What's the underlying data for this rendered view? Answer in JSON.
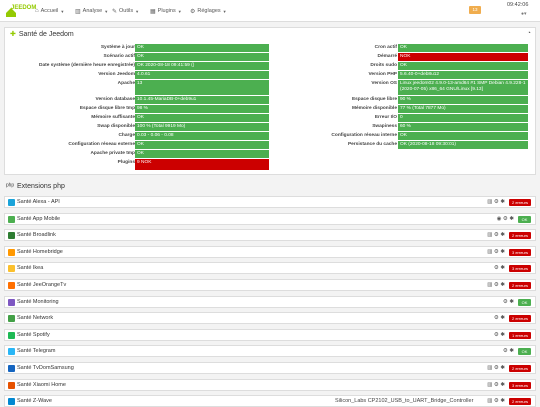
{
  "navbar": {
    "logo_text": "JEEDOM",
    "items": [
      {
        "icon": "home-icon",
        "glyph": "⌂",
        "label": "Accueil"
      },
      {
        "icon": "analysis-icon",
        "glyph": "▥",
        "label": "Analyse"
      },
      {
        "icon": "tools-icon",
        "glyph": "✎",
        "label": "Outils"
      },
      {
        "icon": "plugins-icon",
        "glyph": "▦",
        "label": "Plugins"
      },
      {
        "icon": "settings-icon",
        "glyph": "⚙",
        "label": "Réglages"
      }
    ],
    "badge": "13",
    "clock": "09:42:06"
  },
  "health": {
    "title": "Santé de Jeedom",
    "left": [
      {
        "label": "Système à jour",
        "value": "OK",
        "status": "ok"
      },
      {
        "label": "Scénario actif",
        "value": "OK",
        "status": "ok"
      },
      {
        "label": "Date système (dernière heure enregistrée)",
        "value": "OK 2020-08-18 09:41:59 ()",
        "status": "ok"
      },
      {
        "label": "Version Jeedom",
        "value": "4.0.61",
        "status": "ok"
      },
      {
        "label": "Apache",
        "value": "13",
        "status": "ok"
      },
      {
        "label": "Version database",
        "value": "10.1.45-MariaDB-0+deb9u1",
        "status": "ok"
      },
      {
        "label": "Espace disque libre tmp",
        "value": "98 %",
        "status": "ok"
      },
      {
        "label": "Mémoire suffisante",
        "value": "OK",
        "status": "ok"
      },
      {
        "label": "Swap disponible",
        "value": "100 % (Total 9919 Mo)",
        "status": "ok"
      },
      {
        "label": "Charge",
        "value": "0.03 - 0.06 - 0.08",
        "status": "ok"
      },
      {
        "label": "Configuration réseau externe",
        "value": "OK",
        "status": "ok"
      },
      {
        "label": "Apache private tmp",
        "value": "OK",
        "status": "ok"
      },
      {
        "label": "Plugins",
        "value": "9 NOK",
        "status": "nok"
      }
    ],
    "right": [
      {
        "label": "Cron actif",
        "value": "OK",
        "status": "ok"
      },
      {
        "label": "Démarré",
        "value": "NOK",
        "status": "nok"
      },
      {
        "label": "Droits sudo",
        "value": "OK",
        "status": "ok"
      },
      {
        "label": "Version PHP",
        "value": "5.6.40-0+deb8u12",
        "status": "ok"
      },
      {
        "label": "Version OS",
        "value": "Linux jeedom02 4.9.0-13-amd64 #1 SMP Debian 4.9.228-1 (2020-07-05) x86_64 GNU/Linux [9.13]",
        "status": "ok"
      },
      {
        "label": "Espace disque libre",
        "value": "90 %",
        "status": "ok"
      },
      {
        "label": "Mémoire disponible",
        "value": "77 % (Total 7877 Mo)",
        "status": "ok"
      },
      {
        "label": "Erreur I/O",
        "value": "0",
        "status": "ok"
      },
      {
        "label": "Swapiness",
        "value": "60 %",
        "status": "ok"
      },
      {
        "label": "Configuration réseau interne",
        "value": "OK",
        "status": "ok"
      },
      {
        "label": "Persistance du cache",
        "value": "OK (2020-08-18 09:30:01)",
        "status": "ok"
      }
    ]
  },
  "extensions": {
    "title": "Extensions php",
    "rows": [
      {
        "name": "Santé Alexa - API",
        "icon_color": "#1aa3d9",
        "tools": "▥ ⚙ ✱",
        "badge": "2 erreurs",
        "status": "err"
      },
      {
        "name": "Santé App Mobile",
        "icon_color": "#4caf50",
        "tools": "◉ ⚙ ✱",
        "badge": "OK",
        "status": "ok"
      },
      {
        "name": "Santé Broadlink",
        "icon_color": "#2e7d32",
        "tools": "▥ ⚙ ✱",
        "badge": "2 erreurs",
        "status": "err"
      },
      {
        "name": "Santé Homebridge",
        "icon_color": "#ff9800",
        "tools": "▥ ⚙ ✱",
        "badge": "3 erreurs",
        "status": "err"
      },
      {
        "name": "Santé Ikea",
        "icon_color": "#fbc02d",
        "tools": "⚙ ✱",
        "badge": "3 erreurs",
        "status": "err"
      },
      {
        "name": "Santé JeeOrangeTv",
        "icon_color": "#ff6f00",
        "tools": "▥ ⚙ ✱",
        "badge": "2 erreurs",
        "status": "err"
      },
      {
        "name": "Santé Monitoring",
        "icon_color": "#7e57c2",
        "tools": "⚙ ✱",
        "badge": "OK",
        "status": "ok"
      },
      {
        "name": "Santé Network",
        "icon_color": "#43a047",
        "tools": "⚙ ✱",
        "badge": "2 erreurs",
        "status": "err"
      },
      {
        "name": "Santé Spotify",
        "icon_color": "#1db954",
        "tools": "⚙ ✱",
        "badge": "1 erreurs",
        "status": "err"
      },
      {
        "name": "Santé Telegram",
        "icon_color": "#29b6f6",
        "tools": "⚙ ✱",
        "badge": "OK",
        "status": "ok"
      },
      {
        "name": "Santé TvDomSamsung",
        "icon_color": "#1565c0",
        "tools": "▥ ⚙ ✱",
        "badge": "2 erreurs",
        "status": "err"
      },
      {
        "name": "Santé Xiaomi Home",
        "icon_color": "#e65100",
        "tools": "▥ ⚙ ✱",
        "badge": "3 erreurs",
        "status": "err"
      },
      {
        "name": "Santé Z-Wave",
        "icon_color": "#0288d1",
        "tools": "▥ ⚙ ✱",
        "badge": "2 erreurs",
        "status": "err",
        "extra": "Silicon_Labs CP2102_USB_to_UART_Bridge_Controller"
      }
    ]
  }
}
